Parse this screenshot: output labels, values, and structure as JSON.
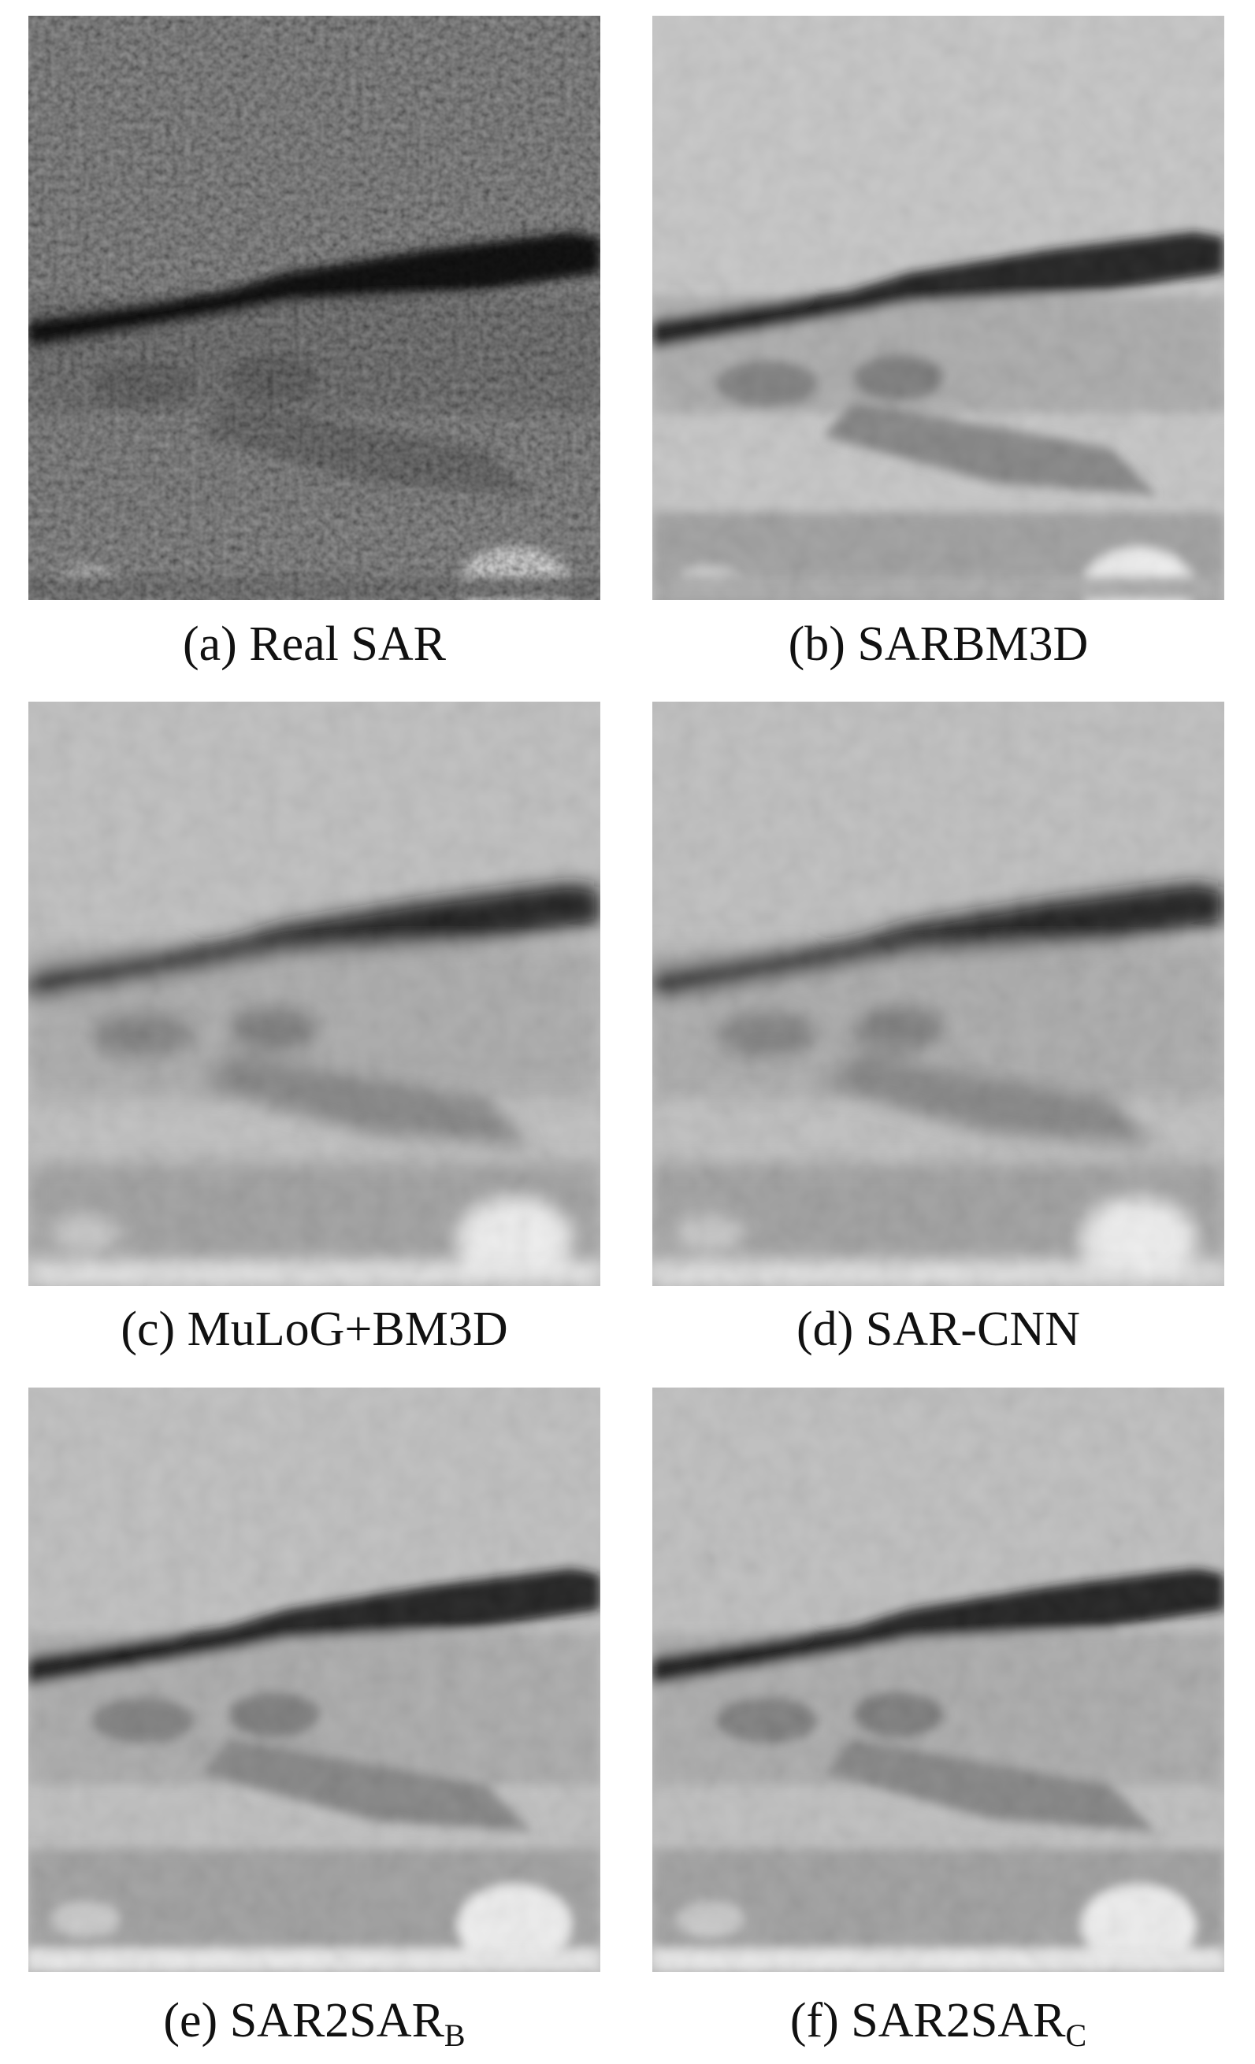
{
  "panels": [
    {
      "caption": "(a) Real SAR"
    },
    {
      "caption": "(b) SARBM3D"
    },
    {
      "caption": "(c) MuLoG+BM3D"
    },
    {
      "caption": "(d) SAR-CNN"
    },
    {
      "caption": "(e) SAR2SAR",
      "subscript": "B"
    },
    {
      "caption": "(f) SAR2SAR",
      "subscript": "C"
    }
  ]
}
